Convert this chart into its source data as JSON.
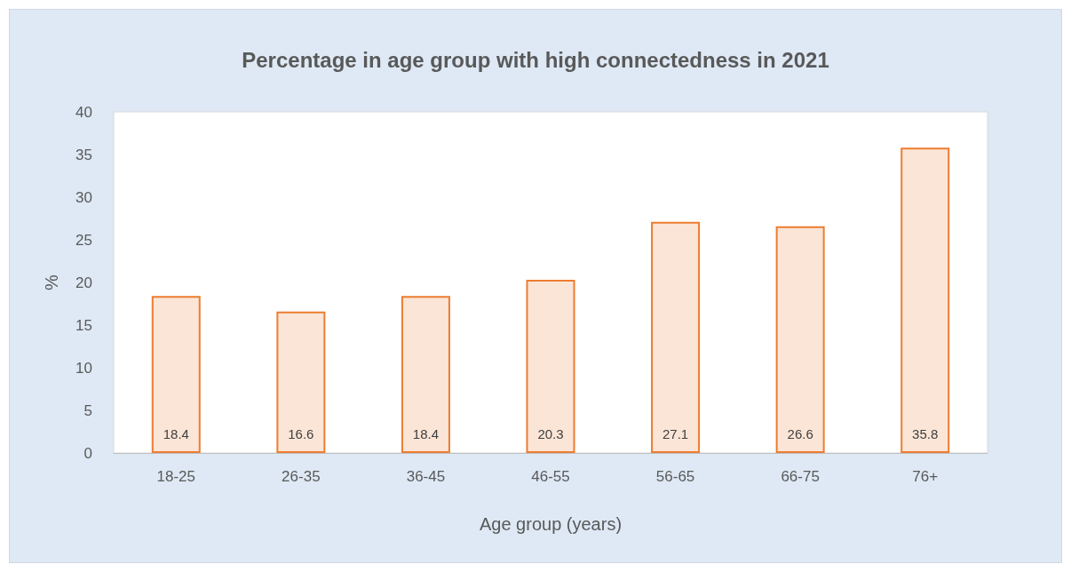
{
  "chart_data": {
    "type": "bar",
    "title": "Percentage in age group with high connectedness in 2021",
    "xlabel": "Age group (years)",
    "ylabel": "%",
    "categories": [
      "18-25",
      "26-35",
      "36-45",
      "46-55",
      "56-65",
      "66-75",
      "76+"
    ],
    "values": [
      18.4,
      16.6,
      18.4,
      20.3,
      27.1,
      26.6,
      35.8
    ],
    "color": "#fbe5d6",
    "ylim": [
      0,
      40
    ],
    "yticks": [
      0,
      5,
      10,
      15,
      20,
      25,
      30,
      35,
      40
    ],
    "grid": false,
    "data_labels": true
  }
}
